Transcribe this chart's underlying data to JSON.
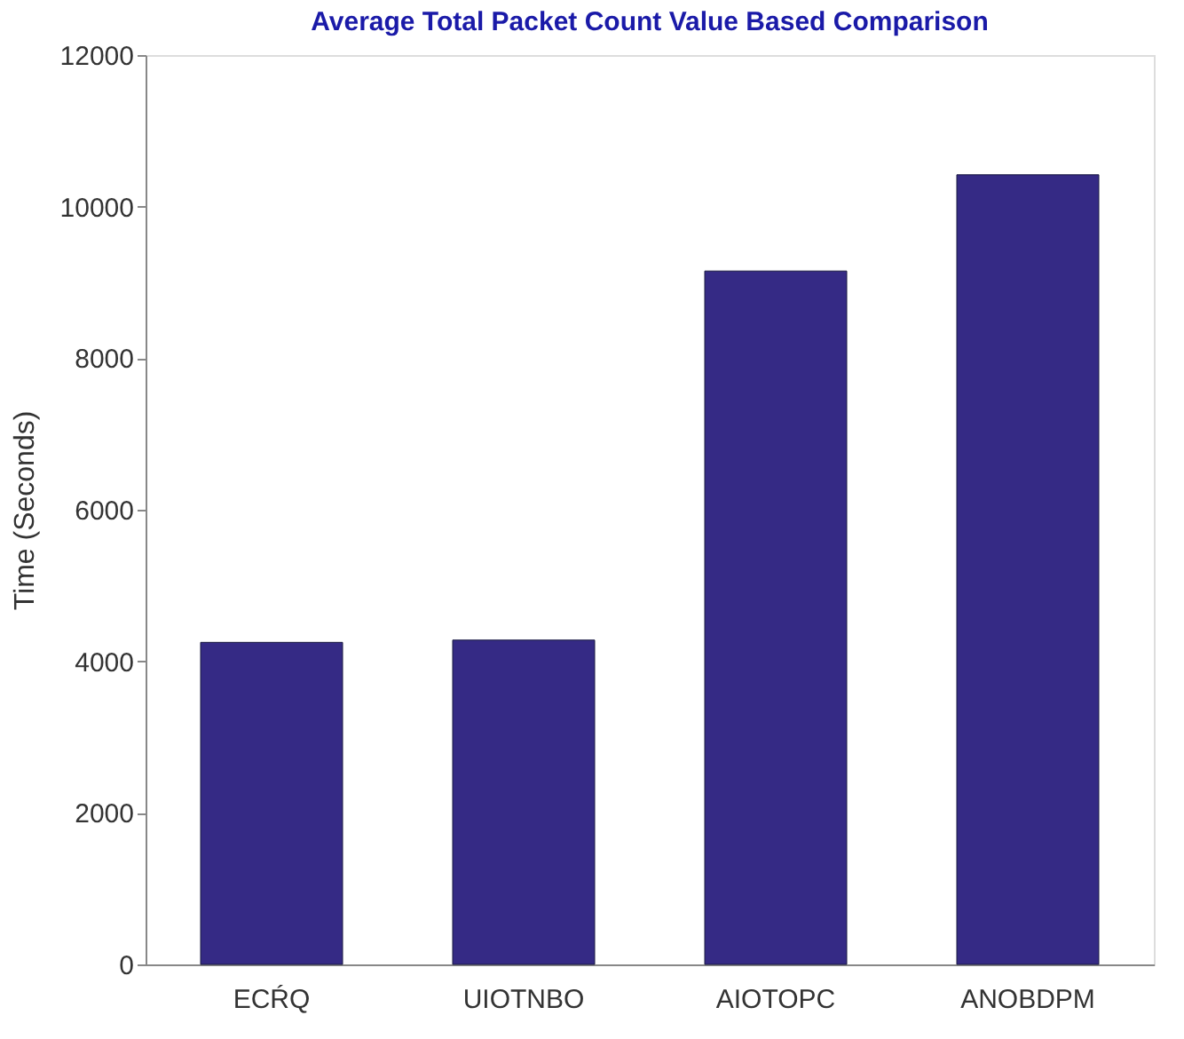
{
  "chart_data": {
    "type": "bar",
    "title": "Average Total Packet Count Value Based Comparison",
    "ylabel": "Time (Seconds)",
    "categories": [
      "ECŔQ",
      "UIOTNBO",
      "AIOTOPC",
      "ANOBDPM"
    ],
    "values": [
      4250,
      4280,
      9150,
      10420
    ],
    "color": "#352a85",
    "ylim": [
      0,
      12000
    ],
    "yticks": [
      0,
      2000,
      4000,
      6000,
      8000,
      10000,
      12000
    ],
    "grid": false
  }
}
